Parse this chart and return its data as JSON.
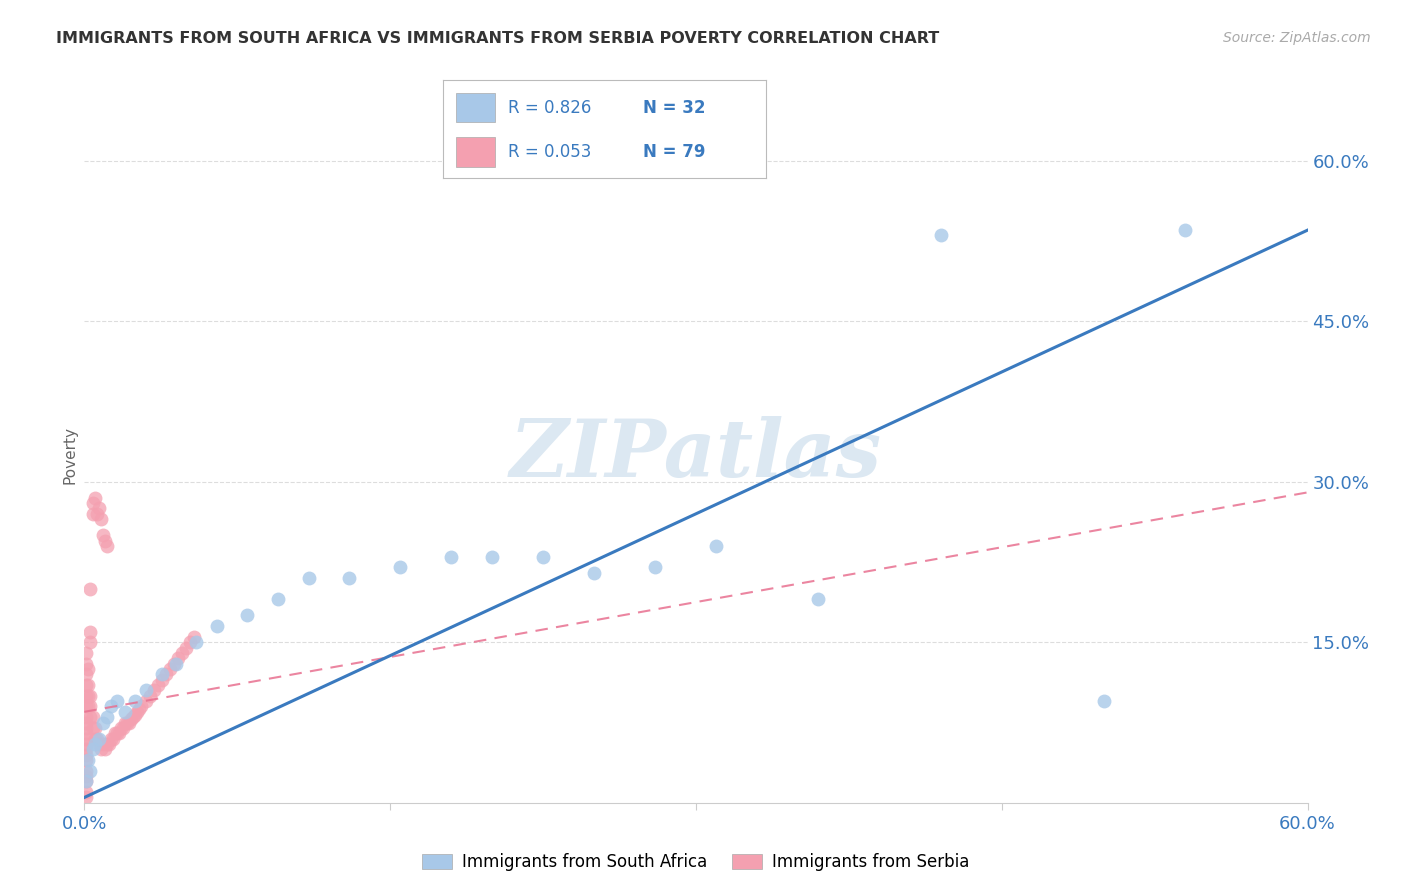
{
  "title": "IMMIGRANTS FROM SOUTH AFRICA VS IMMIGRANTS FROM SERBIA POVERTY CORRELATION CHART",
  "source": "Source: ZipAtlas.com",
  "ylabel": "Poverty",
  "blue_label": "Immigrants from South Africa",
  "pink_label": "Immigrants from Serbia",
  "blue_color": "#a8c8e8",
  "pink_color": "#f4a0b0",
  "blue_line_color": "#3a7abf",
  "pink_line_color": "#e87090",
  "background_color": "#ffffff",
  "watermark_text": "ZIPatlas",
  "legend_R_color": "#3a7abf",
  "legend_N_color": "#3a7abf",
  "legend_text_color": "#333333",
  "title_color": "#333333",
  "source_color": "#aaaaaa",
  "axis_label_color": "#3a7abf",
  "ylabel_color": "#666666",
  "grid_color": "#dddddd",
  "xlim": [
    0.0,
    0.6
  ],
  "ylim": [
    0.0,
    0.65
  ],
  "blue_line_x": [
    0.0,
    0.6
  ],
  "blue_line_y": [
    0.005,
    0.535
  ],
  "pink_line_x": [
    0.0,
    0.6
  ],
  "pink_line_y": [
    0.085,
    0.29
  ],
  "blue_x": [
    0.001,
    0.002,
    0.003,
    0.004,
    0.005,
    0.007,
    0.009,
    0.011,
    0.013,
    0.016,
    0.02,
    0.025,
    0.03,
    0.038,
    0.045,
    0.055,
    0.065,
    0.08,
    0.095,
    0.11,
    0.13,
    0.155,
    0.18,
    0.2,
    0.225,
    0.25,
    0.28,
    0.31,
    0.36,
    0.42,
    0.5,
    0.54
  ],
  "blue_y": [
    0.02,
    0.04,
    0.03,
    0.05,
    0.055,
    0.06,
    0.075,
    0.08,
    0.09,
    0.095,
    0.085,
    0.095,
    0.105,
    0.12,
    0.13,
    0.15,
    0.165,
    0.175,
    0.19,
    0.21,
    0.21,
    0.22,
    0.23,
    0.23,
    0.23,
    0.215,
    0.22,
    0.24,
    0.19,
    0.53,
    0.095,
    0.535
  ],
  "pink_x": [
    0.001,
    0.001,
    0.001,
    0.001,
    0.001,
    0.001,
    0.001,
    0.001,
    0.001,
    0.001,
    0.001,
    0.001,
    0.001,
    0.001,
    0.001,
    0.001,
    0.001,
    0.001,
    0.001,
    0.001,
    0.002,
    0.002,
    0.002,
    0.002,
    0.003,
    0.003,
    0.003,
    0.004,
    0.004,
    0.005,
    0.005,
    0.006,
    0.007,
    0.008,
    0.009,
    0.01,
    0.011,
    0.012,
    0.013,
    0.014,
    0.015,
    0.016,
    0.017,
    0.018,
    0.019,
    0.02,
    0.021,
    0.022,
    0.023,
    0.024,
    0.025,
    0.026,
    0.027,
    0.028,
    0.03,
    0.032,
    0.034,
    0.036,
    0.038,
    0.04,
    0.042,
    0.044,
    0.046,
    0.048,
    0.05,
    0.052,
    0.054,
    0.003,
    0.003,
    0.003,
    0.004,
    0.004,
    0.005,
    0.006,
    0.007,
    0.008,
    0.009,
    0.01,
    0.011
  ],
  "pink_y": [
    0.005,
    0.01,
    0.02,
    0.025,
    0.03,
    0.04,
    0.045,
    0.05,
    0.055,
    0.06,
    0.065,
    0.07,
    0.075,
    0.08,
    0.09,
    0.1,
    0.11,
    0.12,
    0.13,
    0.14,
    0.09,
    0.1,
    0.11,
    0.125,
    0.08,
    0.09,
    0.1,
    0.07,
    0.08,
    0.06,
    0.07,
    0.06,
    0.055,
    0.05,
    0.055,
    0.05,
    0.055,
    0.055,
    0.06,
    0.06,
    0.065,
    0.065,
    0.065,
    0.07,
    0.07,
    0.075,
    0.075,
    0.075,
    0.078,
    0.08,
    0.082,
    0.085,
    0.088,
    0.09,
    0.095,
    0.1,
    0.105,
    0.11,
    0.115,
    0.12,
    0.125,
    0.13,
    0.135,
    0.14,
    0.145,
    0.15,
    0.155,
    0.15,
    0.16,
    0.2,
    0.27,
    0.28,
    0.285,
    0.27,
    0.275,
    0.265,
    0.25,
    0.245,
    0.24
  ]
}
